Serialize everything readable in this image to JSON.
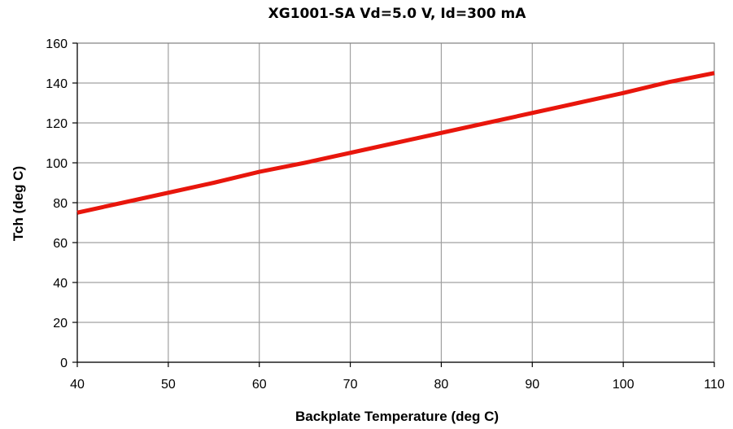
{
  "chart_data": {
    "type": "line",
    "title": "XG1001-SA Vd=5.0 V, Id=300 mA",
    "xlabel": "Backplate Temperature (deg C)",
    "ylabel": "Tch (deg C)",
    "xlim": [
      40,
      110
    ],
    "ylim": [
      0,
      160
    ],
    "x_ticks": [
      40,
      50,
      60,
      70,
      80,
      90,
      100,
      110
    ],
    "y_ticks": [
      0,
      20,
      40,
      60,
      80,
      100,
      120,
      140,
      160
    ],
    "grid": true,
    "legend": "none",
    "series": [
      {
        "color": "#e8160c",
        "x": [
          40,
          45,
          50,
          55,
          60,
          65,
          70,
          75,
          80,
          85,
          90,
          95,
          100,
          105,
          110
        ],
        "y": [
          75,
          80,
          85,
          90,
          95.5,
          100,
          105,
          110,
          115,
          120,
          125,
          130,
          135,
          140.5,
          145
        ]
      }
    ]
  }
}
